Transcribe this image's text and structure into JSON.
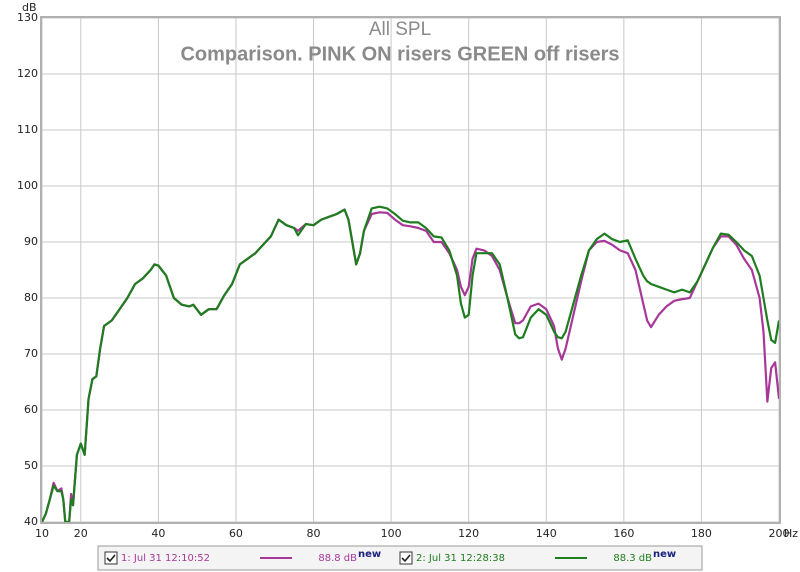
{
  "chart_data": {
    "type": "line",
    "title": "All SPL",
    "subtitle": "Comparison. PINK ON risers GREEN off risers",
    "x_label": "Hz",
    "y_label": "dB",
    "x": [
      10,
      11,
      12,
      13,
      14,
      15,
      15.5,
      16,
      17,
      17.5,
      18,
      19,
      20,
      21,
      22,
      23,
      24,
      25,
      26,
      28,
      30,
      32,
      34,
      36,
      38,
      39,
      40,
      42,
      44,
      46,
      48,
      49,
      51,
      53,
      55,
      57,
      59,
      61,
      63,
      65,
      67,
      69,
      71,
      73,
      75,
      76,
      78,
      80,
      82,
      84,
      86,
      88,
      89,
      90,
      91,
      92,
      93,
      95,
      97,
      99,
      101,
      103,
      105,
      107,
      109,
      111,
      113,
      115,
      117,
      118,
      119,
      120,
      121,
      122,
      124,
      126,
      128,
      130,
      132,
      133,
      134,
      136,
      138,
      140,
      142,
      143,
      144,
      145,
      147,
      149,
      151,
      153,
      155,
      157,
      159,
      161,
      163,
      165,
      166,
      167,
      169,
      171,
      173,
      175,
      177,
      179,
      181,
      183,
      185,
      187,
      189,
      191,
      193,
      195,
      196,
      197,
      198,
      199,
      200
    ],
    "series": [
      {
        "name": "1: Jul 31 12:10:52",
        "color": "#a8379a",
        "legend_value": "88.8 dB",
        "legend_tag": "new",
        "values": [
          40,
          41.5,
          44,
          47,
          45.5,
          46,
          44,
          40,
          40,
          45,
          43,
          52,
          54,
          52,
          62,
          65.5,
          66,
          71,
          75,
          76,
          78,
          80,
          82.5,
          83.5,
          85,
          86,
          85.8,
          84,
          80,
          78.8,
          78.5,
          78.8,
          77,
          78,
          78,
          80.5,
          82.5,
          86,
          87,
          88,
          89.5,
          91,
          94,
          93,
          92.5,
          92,
          93.2,
          93,
          94,
          94.5,
          95,
          95.8,
          94,
          90,
          86,
          88,
          92,
          95,
          95.3,
          95.2,
          94,
          93,
          92.8,
          92.5,
          92,
          90,
          90,
          88,
          85,
          82,
          80.5,
          82,
          87,
          88.8,
          88.5,
          87.5,
          85,
          80,
          75.5,
          75.5,
          76,
          78.5,
          79,
          78,
          75,
          71,
          69,
          71,
          77,
          83,
          88.5,
          90,
          90.2,
          89.5,
          88.5,
          88,
          85,
          79,
          76,
          74.8,
          77,
          78.5,
          79.5,
          79.8,
          80,
          83,
          86,
          89,
          91,
          91,
          89.5,
          87,
          85,
          80,
          74,
          61.5,
          67.5,
          68.5,
          62
        ]
      },
      {
        "name": "2: Jul 31 12:28:38",
        "color": "#1e7d1e",
        "legend_value": "88.3 dB",
        "legend_tag": "new",
        "values": [
          40,
          41.5,
          44,
          46.5,
          45.5,
          45.5,
          44,
          40,
          40,
          44,
          43,
          52,
          54,
          52,
          62,
          65.5,
          66,
          71,
          75,
          76,
          78,
          80,
          82.5,
          83.5,
          85,
          86,
          85.8,
          84,
          80,
          78.8,
          78.5,
          78.8,
          77,
          78,
          78,
          80.5,
          82.5,
          86,
          87,
          88,
          89.5,
          91,
          94,
          93,
          92.5,
          91.2,
          93.2,
          93,
          94,
          94.5,
          95,
          95.8,
          94,
          90,
          86,
          88,
          92,
          96,
          96.3,
          96,
          95,
          93.8,
          93.5,
          93.5,
          92.5,
          91,
          90.8,
          88.5,
          84,
          79,
          76.5,
          77,
          84,
          88,
          88,
          88,
          86,
          80,
          73.5,
          72.8,
          73,
          76.5,
          78,
          77,
          74,
          73,
          72.8,
          74,
          79,
          84,
          88.5,
          90.5,
          91.5,
          90.5,
          90,
          90.3,
          87,
          84,
          83,
          82.5,
          82,
          81.5,
          81,
          81.5,
          81,
          83,
          86,
          89,
          91.5,
          91.3,
          90,
          88.5,
          87.5,
          84,
          80,
          76,
          72.5,
          72,
          76
        ]
      }
    ],
    "xlim": [
      10,
      200
    ],
    "ylim": [
      40,
      130
    ],
    "xticks": [
      10,
      20,
      40,
      60,
      80,
      100,
      120,
      140,
      160,
      180,
      200
    ],
    "yticks": [
      40,
      50,
      60,
      70,
      80,
      90,
      100,
      110,
      120,
      130
    ],
    "grid": true
  }
}
